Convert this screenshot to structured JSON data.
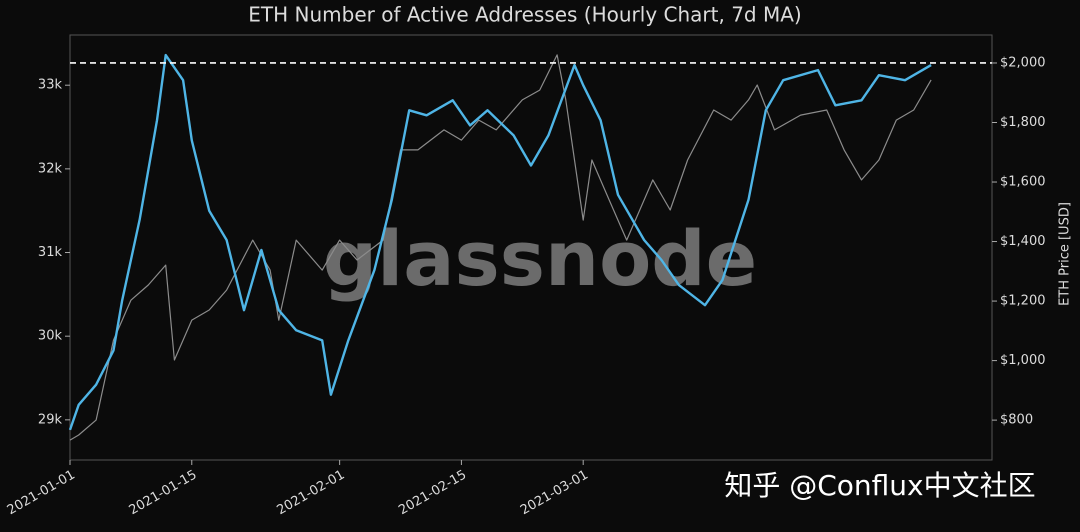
{
  "chart_data": {
    "type": "line",
    "title": "ETH Number of Active Addresses (Hourly Chart, 7d MA)",
    "y2label": "ETH Price [USD]",
    "watermark": "glassnode",
    "source_watermark": "知乎 @Conflux中文社区",
    "xlim": [
      "2021-01-01",
      "2021-04-17"
    ],
    "xticks": [
      "2021-01-01",
      "2021-01-15",
      "2021-02-01",
      "2021-02-15",
      "2021-03-01"
    ],
    "ylim": [
      28520,
      33600
    ],
    "yticks": [
      {
        "value": 29000,
        "label": "29k"
      },
      {
        "value": 30000,
        "label": "30k"
      },
      {
        "value": 31000,
        "label": "31k"
      },
      {
        "value": 32000,
        "label": "32k"
      },
      {
        "value": 33000,
        "label": "33k"
      }
    ],
    "y2lim": [
      666,
      2094
    ],
    "y2ticks": [
      {
        "value": 800,
        "label": "$800"
      },
      {
        "value": 1000,
        "label": "$1,000"
      },
      {
        "value": 1200,
        "label": "$1,200"
      },
      {
        "value": 1400,
        "label": "$1,400"
      },
      {
        "value": 1600,
        "label": "$1,600"
      },
      {
        "value": 1800,
        "label": "$1,800"
      },
      {
        "value": 2000,
        "label": "$2,000"
      }
    ],
    "reference_line_y2": 2000,
    "series": [
      {
        "color": "#8c8c8c",
        "axis": "y2",
        "x": [
          "2021-01-01",
          "2021-01-02",
          "2021-01-04",
          "2021-01-06",
          "2021-01-08",
          "2021-01-10",
          "2021-01-12",
          "2021-01-13",
          "2021-01-15",
          "2021-01-17",
          "2021-01-19",
          "2021-01-22",
          "2021-01-24",
          "2021-01-25",
          "2021-01-27",
          "2021-01-30",
          "2021-02-01",
          "2021-02-03",
          "2021-02-06",
          "2021-02-08",
          "2021-02-10",
          "2021-02-13",
          "2021-02-15",
          "2021-02-17",
          "2021-02-19",
          "2021-02-22",
          "2021-02-24",
          "2021-02-26",
          "2021-02-27",
          "2021-03-01",
          "2021-03-02",
          "2021-03-04",
          "2021-03-06",
          "2021-03-09",
          "2021-03-11",
          "2021-03-13",
          "2021-03-16",
          "2021-03-18",
          "2021-03-20",
          "2021-03-21",
          "2021-03-23",
          "2021-03-26",
          "2021-03-29",
          "2021-03-31",
          "2021-04-02",
          "2021-04-04",
          "2021-04-06",
          "2021-04-08",
          "2021-04-10"
        ],
        "values": [
          733,
          750,
          800,
          1069,
          1203,
          1254,
          1321,
          1002,
          1136,
          1170,
          1237,
          1405,
          1304,
          1136,
          1405,
          1304,
          1405,
          1338,
          1405,
          1708,
          1708,
          1775,
          1741,
          1808,
          1775,
          1876,
          1909,
          2027,
          1876,
          1472,
          1674,
          1539,
          1405,
          1607,
          1506,
          1674,
          1842,
          1808,
          1876,
          1926,
          1775,
          1825,
          1842,
          1708,
          1607,
          1674,
          1808,
          1842,
          1943
        ]
      },
      {
        "color": "#4fb5e6",
        "axis": "y",
        "x": [
          "2021-01-01",
          "2021-01-02",
          "2021-01-04",
          "2021-01-06",
          "2021-01-07",
          "2021-01-09",
          "2021-01-11",
          "2021-01-12",
          "2021-01-14",
          "2021-01-15",
          "2021-01-17",
          "2021-01-19",
          "2021-01-21",
          "2021-01-23",
          "2021-01-25",
          "2021-01-27",
          "2021-01-30",
          "2021-01-31",
          "2021-02-02",
          "2021-02-05",
          "2021-02-07",
          "2021-02-09",
          "2021-02-11",
          "2021-02-14",
          "2021-02-16",
          "2021-02-18",
          "2021-02-21",
          "2021-02-23",
          "2021-02-25",
          "2021-02-28",
          "2021-03-01",
          "2021-03-03",
          "2021-03-05",
          "2021-03-08",
          "2021-03-10",
          "2021-03-12",
          "2021-03-15",
          "2021-03-17",
          "2021-03-20",
          "2021-03-22",
          "2021-03-24",
          "2021-03-28",
          "2021-03-30",
          "2021-04-02",
          "2021-04-04",
          "2021-04-07",
          "2021-04-10"
        ],
        "values": [
          28880,
          29180,
          29420,
          29830,
          30430,
          31390,
          32580,
          33360,
          33060,
          32340,
          31500,
          31150,
          30310,
          31030,
          30310,
          30070,
          29950,
          29300,
          29950,
          30790,
          31630,
          32700,
          32640,
          32820,
          32520,
          32700,
          32400,
          32040,
          32400,
          33240,
          33000,
          32580,
          31690,
          31150,
          30910,
          30610,
          30370,
          30670,
          31630,
          32700,
          33060,
          33180,
          32760,
          32820,
          33120,
          33060,
          33240
        ]
      }
    ]
  }
}
